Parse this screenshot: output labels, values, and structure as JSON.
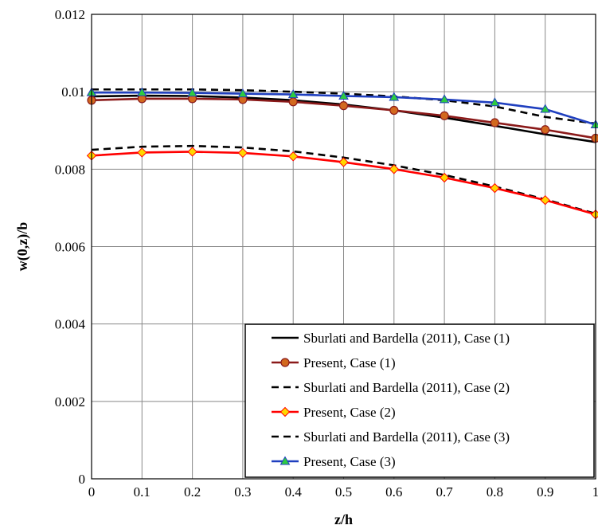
{
  "chart_data": {
    "type": "line",
    "title": "",
    "xlabel": "z/h",
    "ylabel": "w(0,z)/b",
    "xlim": [
      0,
      1
    ],
    "ylim": [
      0,
      0.012
    ],
    "x_ticks": [
      "0",
      "0.1",
      "0.2",
      "0.3",
      "0.4",
      "0.5",
      "0.6",
      "0.7",
      "0.8",
      "0.9",
      "1"
    ],
    "y_ticks": [
      "0",
      "0.002",
      "0.004",
      "0.006",
      "0.008",
      "0.01",
      "0.012"
    ],
    "grid": "on",
    "legend_position": "bottom-right",
    "series": [
      {
        "name": "Sburlati and Bardella (2011), Case (1)",
        "color": "#000000",
        "style": "solid",
        "marker": "none",
        "x": [
          0,
          0.1,
          0.2,
          0.3,
          0.4,
          0.5,
          0.6,
          0.7,
          0.8,
          0.9,
          1
        ],
        "values": [
          0.00988,
          0.0099,
          0.00989,
          0.00985,
          0.00978,
          0.00967,
          0.00952,
          0.00933,
          0.00912,
          0.0089,
          0.0087
        ]
      },
      {
        "name": "Present, Case (1)",
        "color": "#8b1a1a",
        "marker_fill": "#d2691e",
        "style": "solid",
        "marker": "circle",
        "x": [
          0,
          0.1,
          0.2,
          0.3,
          0.4,
          0.5,
          0.6,
          0.7,
          0.8,
          0.9,
          1
        ],
        "values": [
          0.00978,
          0.00982,
          0.00982,
          0.0098,
          0.00974,
          0.00964,
          0.00952,
          0.00938,
          0.0092,
          0.00902,
          0.0088
        ]
      },
      {
        "name": "Sburlati and Bardella (2011), Case (2)",
        "color": "#000000",
        "style": "dashed",
        "marker": "none",
        "x": [
          0,
          0.1,
          0.2,
          0.3,
          0.4,
          0.5,
          0.6,
          0.7,
          0.8,
          0.9,
          1
        ],
        "values": [
          0.0085,
          0.00858,
          0.0086,
          0.00856,
          0.00846,
          0.0083,
          0.0081,
          0.00785,
          0.00755,
          0.00722,
          0.00685
        ]
      },
      {
        "name": "Present, Case (2)",
        "color": "#ff0000",
        "marker_fill": "#ffd700",
        "style": "solid",
        "marker": "diamond",
        "x": [
          0,
          0.1,
          0.2,
          0.3,
          0.4,
          0.5,
          0.6,
          0.7,
          0.8,
          0.9,
          1
        ],
        "values": [
          0.00835,
          0.00843,
          0.00845,
          0.00842,
          0.00833,
          0.00818,
          0.008,
          0.00778,
          0.00751,
          0.0072,
          0.00683
        ]
      },
      {
        "name": "Sburlati and Bardella (2011), Case (3)",
        "color": "#000000",
        "style": "dashed",
        "marker": "none",
        "x": [
          0,
          0.1,
          0.2,
          0.3,
          0.4,
          0.5,
          0.6,
          0.7,
          0.8,
          0.9,
          1
        ],
        "values": [
          0.01006,
          0.01006,
          0.01006,
          0.01004,
          0.01,
          0.00995,
          0.00988,
          0.00978,
          0.00962,
          0.00935,
          0.00918
        ]
      },
      {
        "name": "Present, Case (3)",
        "color": "#1f3fbf",
        "marker_fill": "#2ecc40",
        "style": "solid",
        "marker": "triangle",
        "x": [
          0,
          0.1,
          0.2,
          0.3,
          0.4,
          0.5,
          0.6,
          0.7,
          0.8,
          0.9,
          1
        ],
        "values": [
          0.00998,
          0.00998,
          0.00997,
          0.00995,
          0.00993,
          0.00989,
          0.00986,
          0.0098,
          0.00972,
          0.00955,
          0.00915
        ]
      }
    ]
  }
}
